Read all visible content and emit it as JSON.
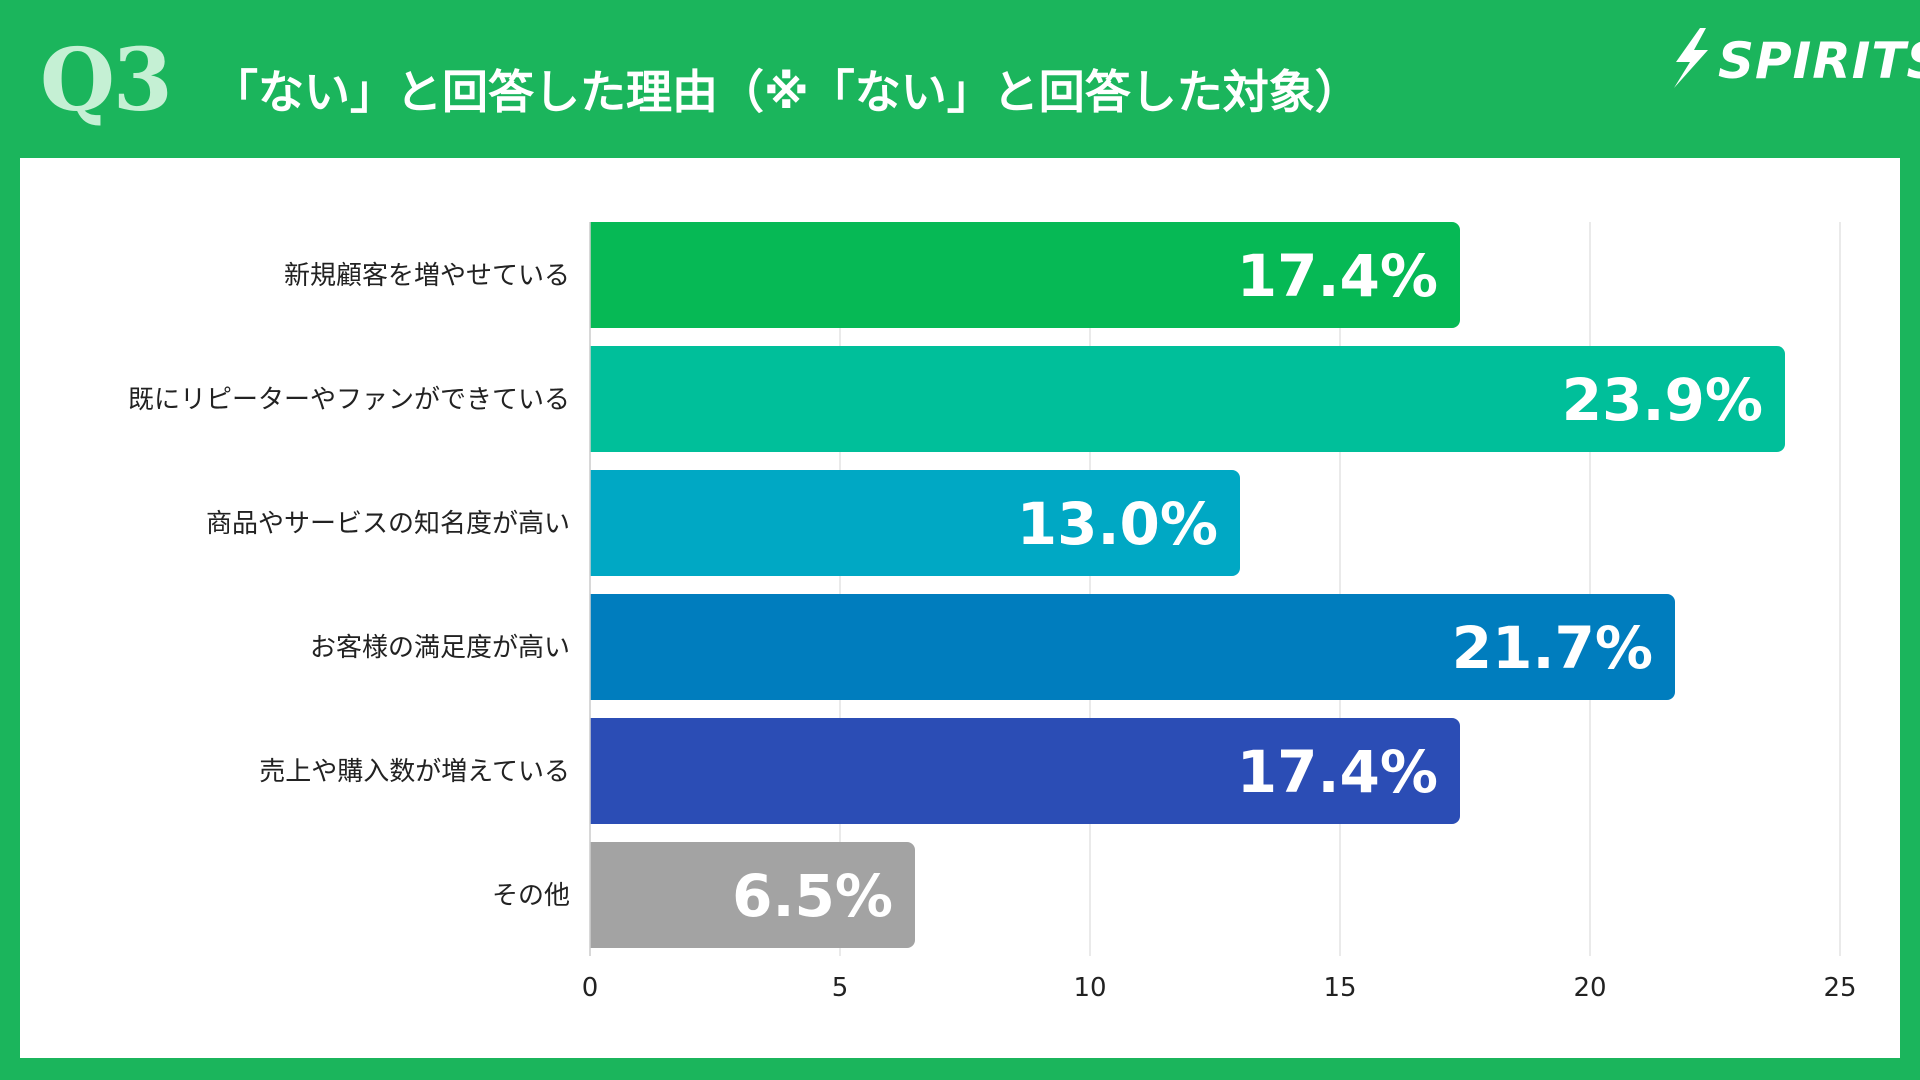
{
  "header": {
    "question": "Q3",
    "title": "「ない」と回答した理由（※「ない」と回答した対象）",
    "logo_text": "SPIRITS"
  },
  "colors": {
    "background": "#1bb55c",
    "panel": "#ffffff",
    "question_label": "#c5f0d4"
  },
  "chart_data": {
    "type": "bar",
    "orientation": "horizontal",
    "categories": [
      "新規顧客を増やせている",
      "既にリピーターやファンができている",
      "商品やサービスの知名度が高い",
      "お客様の満足度が高い",
      "売上や購入数が増えている",
      "その他"
    ],
    "values": [
      17.4,
      23.9,
      13.0,
      21.7,
      17.4,
      6.5
    ],
    "value_labels": [
      "17.4%",
      "23.9%",
      "13.0%",
      "21.7%",
      "17.4%",
      "6.5%"
    ],
    "bar_colors": [
      "#06b955",
      "#00bf9a",
      "#00a8c4",
      "#007dbe",
      "#2b4db5",
      "#a3a3a3"
    ],
    "x_ticks": [
      "0",
      "5",
      "10",
      "15",
      "20",
      "25"
    ],
    "xlim": [
      0,
      25
    ],
    "grid": true,
    "title": "",
    "xlabel": "",
    "ylabel": ""
  }
}
